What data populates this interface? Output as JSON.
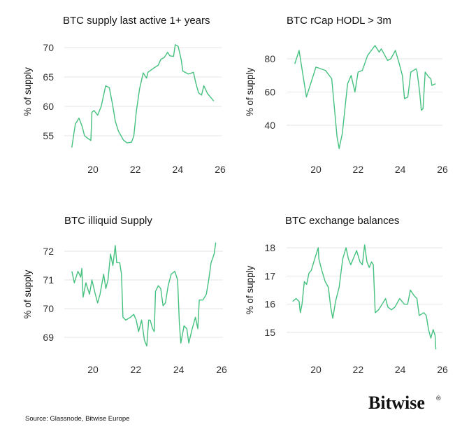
{
  "line_color": "#45c17f",
  "source": "Source: Glassnode, Bitwise Europe",
  "logo": {
    "text": "Bitwise",
    "mark": "®"
  },
  "chart_data": [
    {
      "type": "line",
      "title": "BTC supply last active 1+ years",
      "ylabel": "% of supply",
      "xticks": [
        20,
        22,
        24,
        26
      ],
      "yticks": [
        55,
        60,
        65,
        70
      ],
      "grid": true,
      "series": [
        {
          "x": [
            19.0,
            19.17,
            19.34,
            19.5,
            19.6,
            19.78,
            19.9,
            19.95,
            20.05,
            20.22,
            20.39,
            20.6,
            20.77,
            20.94,
            21.05,
            21.2,
            21.43,
            21.6,
            21.82,
            21.93,
            22.04,
            22.2,
            22.37,
            22.53,
            22.59,
            22.86,
            23.08,
            23.2,
            23.36,
            23.52,
            23.63,
            23.8,
            23.88,
            24.02,
            24.16,
            24.24,
            24.5,
            24.74,
            24.85,
            24.98,
            25.12,
            25.23,
            25.4,
            25.56,
            25.7
          ],
          "y": [
            53,
            57,
            58,
            56.5,
            55,
            54.5,
            54.2,
            59,
            59.3,
            58.5,
            60,
            63.5,
            63.2,
            60,
            57.5,
            55.8,
            54.3,
            53.8,
            53.9,
            55,
            59,
            63,
            65.7,
            64.8,
            65.8,
            66.5,
            67,
            68,
            68.3,
            69.2,
            68.6,
            68.5,
            70.5,
            70.2,
            68,
            66,
            65.5,
            65.8,
            64,
            62.3,
            61.9,
            63.5,
            62.2,
            61.5,
            60.9
          ]
        }
      ]
    },
    {
      "type": "line",
      "title": "BTC rCap HODL > 3m",
      "ylabel": "% of supply",
      "xticks": [
        20,
        22,
        24,
        26
      ],
      "yticks": [
        40,
        60,
        80
      ],
      "grid": true,
      "series": [
        {
          "x": [
            19.0,
            19.2,
            19.55,
            20.0,
            20.45,
            20.75,
            21.0,
            21.1,
            21.25,
            21.5,
            21.67,
            21.85,
            22.0,
            22.2,
            22.45,
            22.8,
            23.0,
            23.1,
            23.4,
            23.55,
            23.77,
            23.93,
            24.1,
            24.2,
            24.36,
            24.5,
            24.75,
            24.8,
            24.92,
            25.0,
            25.08,
            25.18,
            25.35,
            25.45,
            25.5,
            25.68
          ],
          "y": [
            77,
            85,
            57,
            75,
            73,
            68,
            33,
            26,
            35,
            65,
            70,
            60,
            72,
            73,
            82,
            88,
            84,
            86,
            79,
            80,
            85,
            78,
            70,
            56,
            57,
            72,
            74,
            72,
            60,
            49,
            50,
            72,
            69,
            68,
            64,
            65
          ]
        }
      ]
    },
    {
      "type": "line",
      "title": "BTC illiquid Supply",
      "ylabel": "% of supply",
      "xticks": [
        20,
        22,
        24,
        26
      ],
      "yticks": [
        69,
        70,
        71,
        72
      ],
      "grid": true,
      "series": [
        {
          "x": [
            19.02,
            19.13,
            19.3,
            19.43,
            19.48,
            19.54,
            19.67,
            19.84,
            19.95,
            20.11,
            20.22,
            20.33,
            20.5,
            20.6,
            20.7,
            20.82,
            20.93,
            21.04,
            21.11,
            21.25,
            21.33,
            21.4,
            21.53,
            21.75,
            21.9,
            22.02,
            22.13,
            22.27,
            22.4,
            22.51,
            22.6,
            22.67,
            22.78,
            22.86,
            22.92,
            23.05,
            23.16,
            23.27,
            23.38,
            23.51,
            23.65,
            23.82,
            23.95,
            24.03,
            24.1,
            24.25,
            24.38,
            24.47,
            24.63,
            24.78,
            24.89,
            24.96,
            25.13,
            25.29,
            25.4,
            25.51,
            25.65,
            25.73
          ],
          "y": [
            71.3,
            70.9,
            71.3,
            71.1,
            71.4,
            70.4,
            70.9,
            70.5,
            71,
            70.5,
            70.2,
            70.5,
            71.2,
            70.7,
            71,
            71.9,
            71.5,
            72.2,
            71.6,
            71.6,
            71.2,
            69.7,
            69.6,
            69.7,
            69.8,
            69.6,
            69.2,
            69.6,
            68.9,
            68.7,
            69.6,
            69.6,
            69.3,
            69.2,
            70.6,
            70.8,
            70.7,
            70.1,
            70.2,
            70.8,
            71.2,
            71.3,
            71,
            69.5,
            68.8,
            69.4,
            69.3,
            68.8,
            69.3,
            69.7,
            69.3,
            70.3,
            70.3,
            70.5,
            71,
            71.6,
            71.9,
            72.3
          ]
        }
      ]
    },
    {
      "type": "line",
      "title": "BTC exchange balances",
      "ylabel": "% of supply",
      "xticks": [
        20,
        22,
        24,
        26
      ],
      "yticks": [
        15,
        16,
        17,
        18
      ],
      "grid": true,
      "series": [
        {
          "x": [
            18.9,
            19.06,
            19.2,
            19.26,
            19.34,
            19.45,
            19.56,
            19.67,
            19.78,
            19.94,
            20.11,
            20.14,
            20.28,
            20.44,
            20.59,
            20.7,
            20.8,
            20.93,
            21.1,
            21.27,
            21.43,
            21.54,
            21.65,
            21.82,
            21.93,
            22.09,
            22.2,
            22.31,
            22.42,
            22.53,
            22.64,
            22.72,
            22.81,
            22.97,
            23.14,
            23.3,
            23.41,
            23.58,
            23.75,
            23.97,
            24.19,
            24.35,
            24.48,
            24.66,
            24.79,
            24.9,
            25.12,
            25.23,
            25.34,
            25.45,
            25.56,
            25.65,
            25.69
          ],
          "y": [
            16.1,
            16.2,
            16.1,
            15.7,
            16.0,
            16.8,
            16.7,
            17.1,
            17.2,
            17.6,
            18.0,
            17.6,
            17.2,
            16.8,
            16.6,
            15.9,
            15.5,
            16.1,
            16.6,
            17.6,
            18.0,
            17.6,
            17.4,
            17.7,
            17.9,
            17.5,
            17.4,
            18.1,
            17.5,
            17.3,
            17.5,
            17.4,
            15.7,
            15.8,
            16.0,
            16.2,
            15.9,
            15.8,
            15.9,
            16.2,
            16.0,
            16.0,
            16.5,
            16.3,
            16.2,
            15.6,
            15.7,
            15.6,
            15.1,
            14.8,
            15.1,
            14.9,
            14.4
          ]
        }
      ]
    }
  ]
}
